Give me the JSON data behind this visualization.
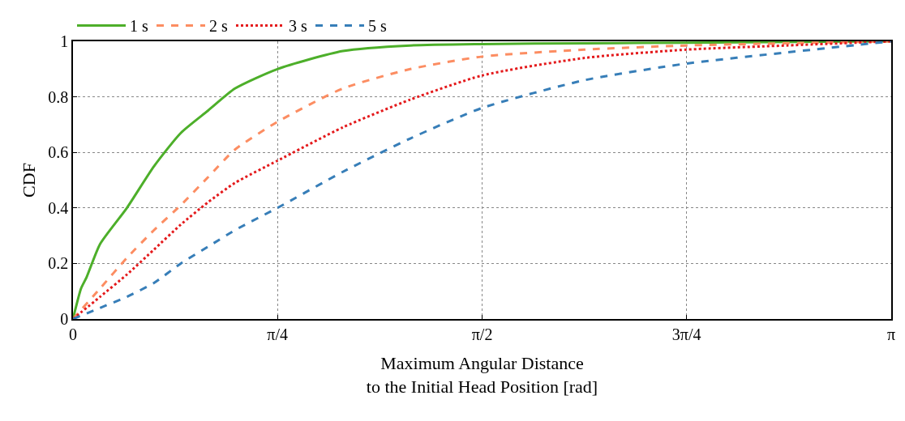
{
  "chart_data": {
    "type": "line",
    "xlabel": "Maximum Angular Distance\nto the Initial Head Position [rad]",
    "ylabel": "CDF",
    "xlim": [
      0,
      3.1416
    ],
    "xticks": [
      0,
      {
        "value": 0.785,
        "label": "π/4"
      },
      {
        "value": 1.571,
        "label": "π/2"
      },
      {
        "value": 2.356,
        "label": "3π/4"
      },
      {
        "value": 3.1416,
        "label": "π"
      }
    ],
    "ylim": [
      0,
      1
    ],
    "yticks": [
      0,
      0.2,
      0.4,
      0.6,
      0.8,
      1
    ],
    "grid": true,
    "legend": "top",
    "marker": "none",
    "series": [
      {
        "name": "1 s",
        "color": "#4daf2a",
        "line_style": "solid",
        "x": [
          0,
          0.031,
          0.052,
          0.104,
          0.207,
          0.311,
          0.414,
          0.518,
          0.622,
          0.785,
          1.036,
          1.295,
          1.571,
          1.964,
          2.356,
          3.1416
        ],
        "values": [
          0,
          0.11,
          0.15,
          0.27,
          0.4,
          0.55,
          0.67,
          0.75,
          0.83,
          0.9,
          0.965,
          0.985,
          0.99,
          0.993,
          0.995,
          1
        ]
      },
      {
        "name": "2 s",
        "color": "#fc8d62",
        "line_style": "dashed",
        "x": [
          0,
          0.104,
          0.207,
          0.311,
          0.414,
          0.518,
          0.622,
          0.785,
          1.036,
          1.295,
          1.571,
          1.964,
          2.356,
          3.1416
        ],
        "values": [
          0,
          0.11,
          0.22,
          0.32,
          0.41,
          0.51,
          0.61,
          0.71,
          0.83,
          0.9,
          0.945,
          0.97,
          0.985,
          1
        ]
      },
      {
        "name": "3 s",
        "color": "#e41a1c",
        "line_style": "dotted",
        "x": [
          0,
          0.104,
          0.207,
          0.311,
          0.414,
          0.518,
          0.622,
          0.785,
          1.036,
          1.295,
          1.571,
          1.964,
          2.356,
          2.741,
          3.1416
        ],
        "values": [
          0,
          0.08,
          0.16,
          0.25,
          0.34,
          0.42,
          0.49,
          0.57,
          0.69,
          0.79,
          0.877,
          0.94,
          0.97,
          0.985,
          1
        ]
      },
      {
        "name": "5 s",
        "color": "#377eb8",
        "line_style": "dashed",
        "x": [
          0,
          0.104,
          0.207,
          0.311,
          0.414,
          0.518,
          0.622,
          0.785,
          1.036,
          1.295,
          1.571,
          1.964,
          2.356,
          2.741,
          3.1416
        ],
        "values": [
          0,
          0.04,
          0.08,
          0.13,
          0.2,
          0.26,
          0.32,
          0.4,
          0.53,
          0.65,
          0.76,
          0.86,
          0.92,
          0.96,
          1
        ]
      }
    ]
  }
}
